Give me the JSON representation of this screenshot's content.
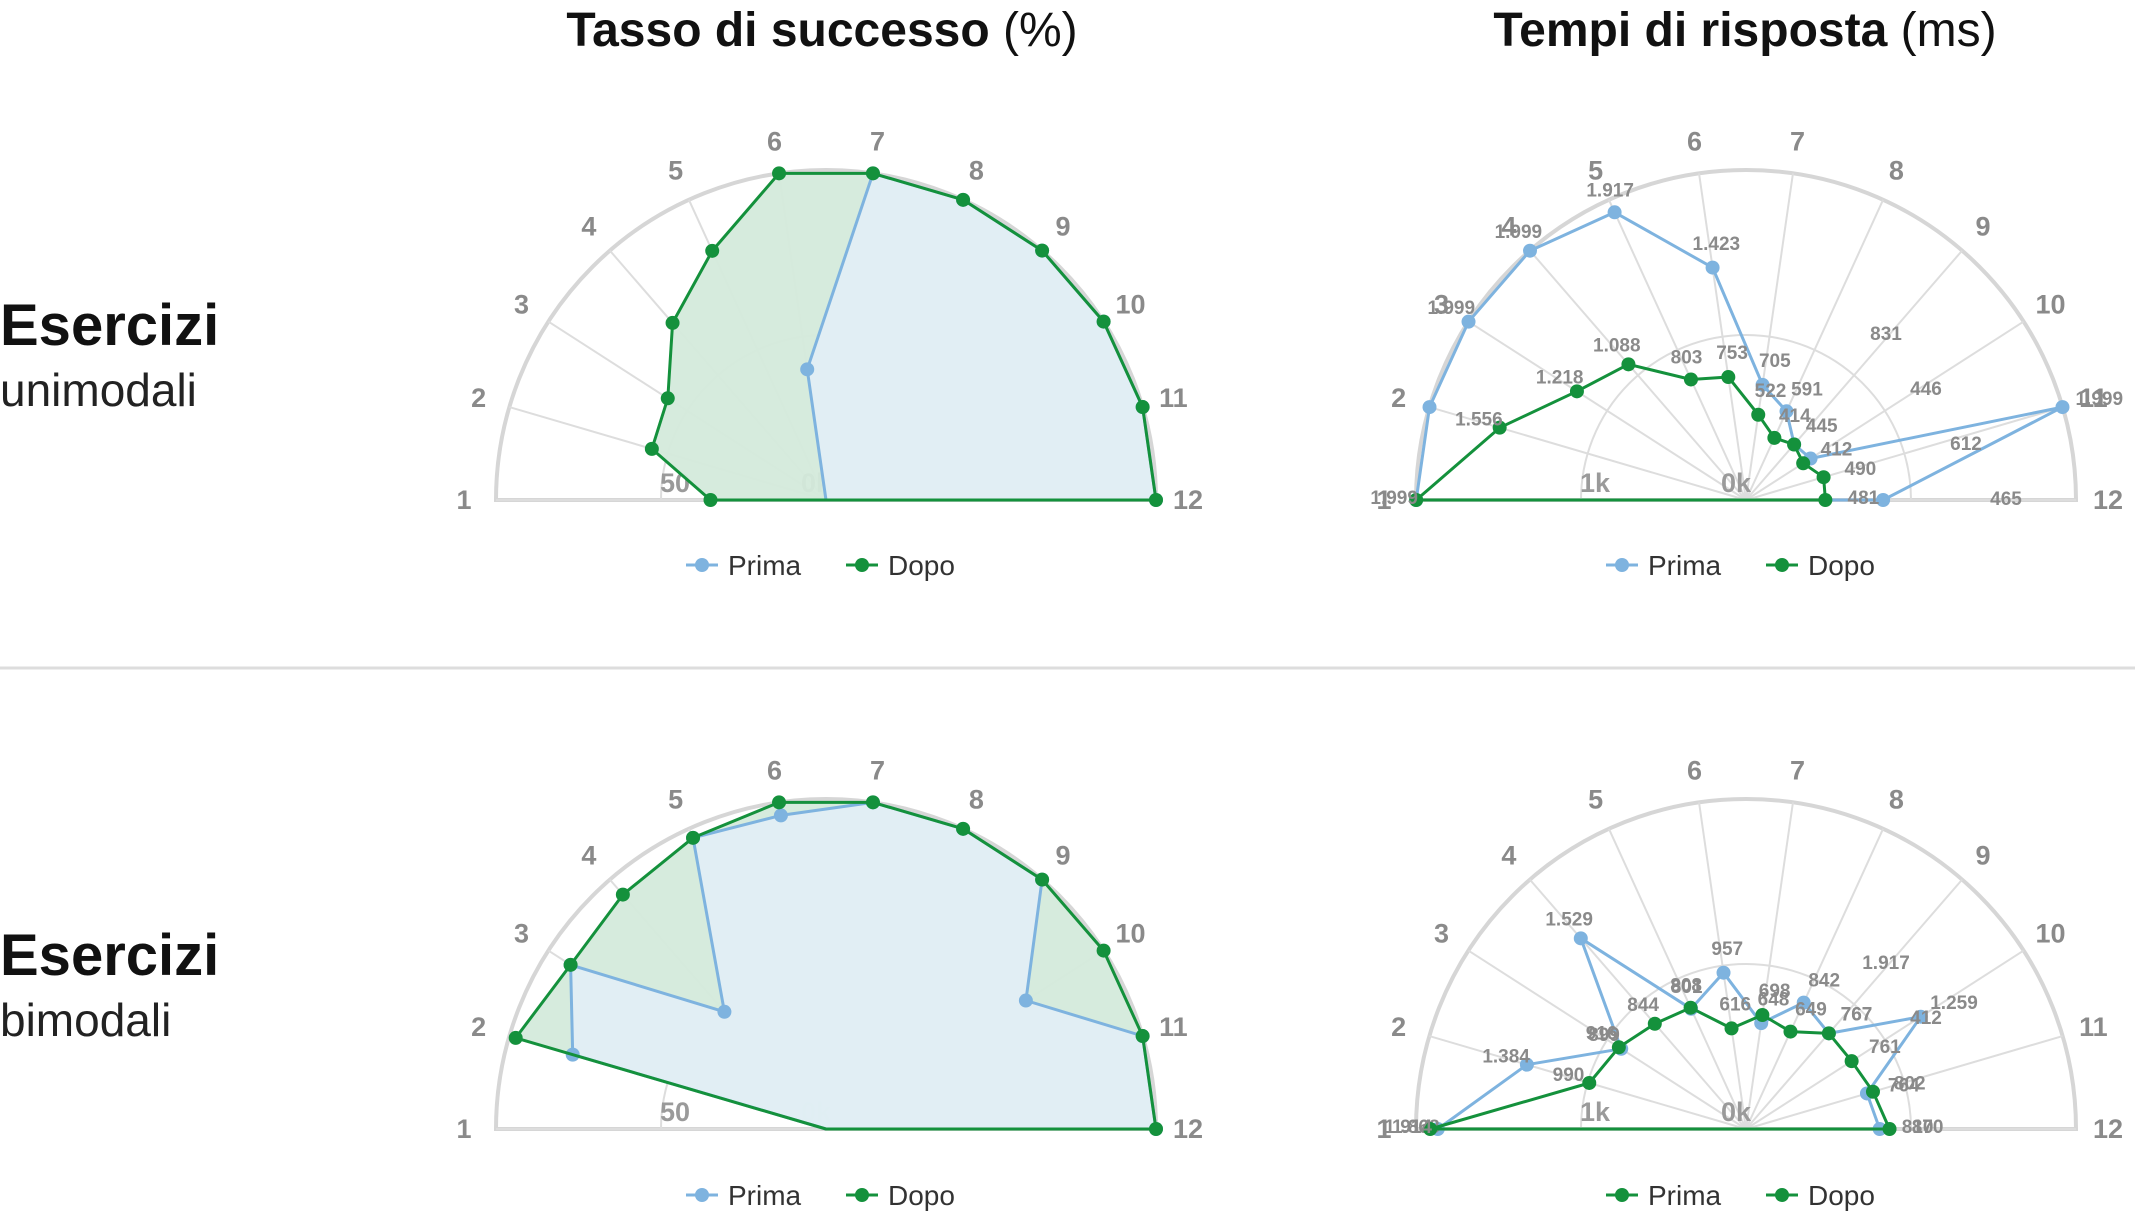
{
  "headers": {
    "col1_bold": "Tasso di successo",
    "col1_rest": " (%)",
    "col2_bold": "Tempi di risposta",
    "col2_rest": " (ms)",
    "row1_bold": "Esercizi",
    "row1_sub": "unimodali",
    "row2_bold": "Esercizi",
    "row2_sub": "bimodali"
  },
  "colors": {
    "prima": "#7eb3df",
    "dopo": "#14913c",
    "prima_fill": "#e3eef8",
    "dopo_fill": "#d4eadb",
    "grid": "#dddddd",
    "outline": "#d6d6d6",
    "divider": "#dddddd"
  },
  "chart_data": [
    {
      "type": "radar",
      "id": "success-unimodal",
      "categories": [
        "1",
        "2",
        "3",
        "4",
        "5",
        "6",
        "7",
        "8",
        "9",
        "10",
        "11",
        "12"
      ],
      "rmax": 100,
      "ring_values": [
        50,
        0
      ],
      "ring_labels": [
        "50",
        "0k"
      ],
      "fill": true,
      "show_data_labels": false,
      "series": [
        {
          "name": "Prima",
          "values": [
            0,
            0,
            0,
            0,
            0,
            40,
            100,
            100,
            100,
            100,
            100,
            100
          ]
        },
        {
          "name": "Dopo",
          "values": [
            35,
            55,
            57,
            71,
            83,
            100,
            100,
            100,
            100,
            100,
            100,
            100
          ]
        }
      ],
      "legend": [
        "Prima",
        "Dopo"
      ],
      "legend_position": "bottom"
    },
    {
      "type": "radar",
      "id": "time-unimodal",
      "categories": [
        "1",
        "2",
        "3",
        "4",
        "5",
        "6",
        "7",
        "8",
        "9",
        "10",
        "11",
        "12"
      ],
      "rmax": 2000,
      "ring_values": [
        1000,
        0
      ],
      "ring_labels": [
        "1k",
        "0k"
      ],
      "fill": false,
      "show_data_labels": true,
      "series": [
        {
          "name": "Prima",
          "values": [
            1999,
            1999,
            1999,
            1999,
            1917,
            1423,
            705,
            591,
            446,
            465,
            1999,
            831
          ],
          "labels": [
            "",
            "",
            "1.999",
            "1.999",
            "1.917",
            "1.423",
            "705",
            "591",
            "",
            "",
            "1.999",
            ""
          ]
        },
        {
          "name": "Dopo",
          "values": [
            1999,
            1556,
            1218,
            1088,
            803,
            753,
            522,
            414,
            445,
            412,
            490,
            481
          ],
          "labels": [
            "1.999",
            "1.556",
            "1.218",
            "1.088",
            "803",
            "753",
            "522",
            "414",
            "445",
            "412",
            "490",
            "481"
          ]
        }
      ],
      "extra_labels": [
        "831",
        "446",
        "612",
        "465"
      ],
      "legend": [
        "Prima",
        "Dopo"
      ],
      "legend_position": "bottom"
    },
    {
      "type": "radar",
      "id": "success-bimodal",
      "categories": [
        "1",
        "2",
        "3",
        "4",
        "5",
        "6",
        "7",
        "8",
        "9",
        "10",
        "11",
        "12"
      ],
      "rmax": 100,
      "ring_values": [
        50,
        0
      ],
      "ring_labels": [
        "50",
        "0k"
      ],
      "fill": true,
      "show_data_labels": false,
      "series": [
        {
          "name": "Prima",
          "values": [
            0,
            80,
            92,
            47,
            97,
            96,
            100,
            100,
            100,
            72,
            100,
            100
          ]
        },
        {
          "name": "Dopo",
          "values": [
            0,
            98,
            92,
            94,
            97,
            100,
            100,
            100,
            100,
            100,
            100,
            100
          ]
        }
      ],
      "legend": [
        "Prima",
        "Dopo"
      ],
      "legend_position": "bottom"
    },
    {
      "type": "radar",
      "id": "time-bimodal",
      "categories": [
        "1",
        "2",
        "3",
        "4",
        "5",
        "6",
        "7",
        "8",
        "9",
        "10",
        "11",
        "12"
      ],
      "rmax": 2000,
      "ring_values": [
        1000,
        0
      ],
      "ring_labels": [
        "1k",
        "0k"
      ],
      "fill": false,
      "show_data_labels": true,
      "series": [
        {
          "name": "Prima",
          "values": [
            1868,
            1384,
            899,
            1529,
            801,
            957,
            648,
            842,
            767,
            1259,
            764,
            810
          ],
          "labels": [
            "1.868",
            "1.384",
            "899",
            "1.529",
            "801",
            "957",
            "648",
            "842",
            "767",
            "1.259",
            "764",
            "810"
          ]
        },
        {
          "name": "Dopo",
          "values": [
            1914,
            990,
            916,
            844,
            808,
            616,
            698,
            649,
            767,
            761,
            802,
            870
          ],
          "labels": [
            "1.914",
            "990",
            "916",
            "844",
            "808",
            "616",
            "698",
            "649",
            "767",
            "761",
            "802",
            "870"
          ]
        }
      ],
      "extra_labels": [
        "1.917",
        "412"
      ],
      "legend": [
        "Prima",
        "Dopo"
      ],
      "legend_alt": [
        "Prima",
        "Dopo"
      ],
      "legend_position": "bottom"
    }
  ]
}
